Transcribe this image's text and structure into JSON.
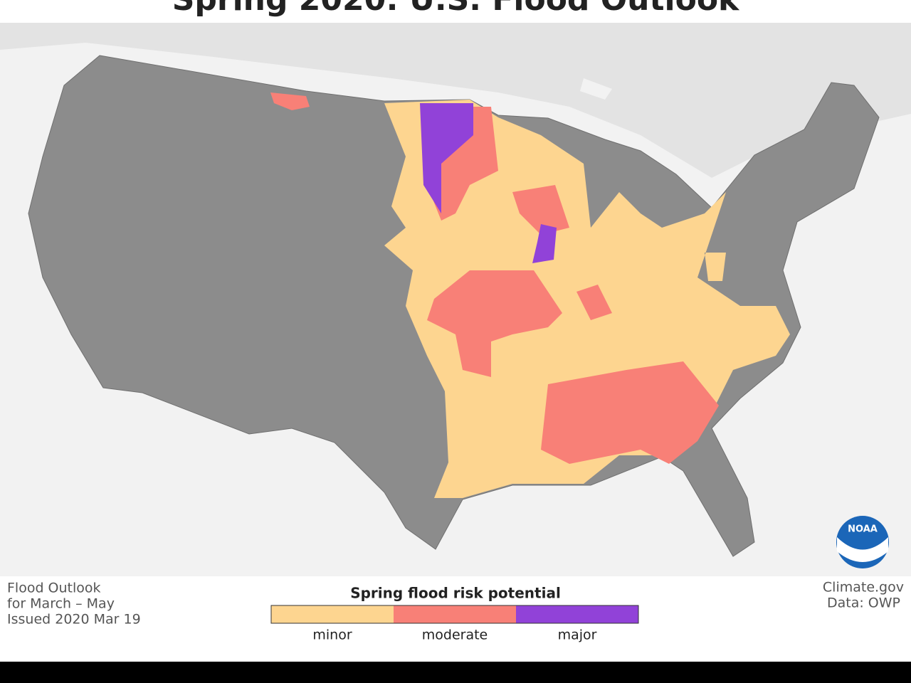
{
  "title": "Spring 2020: U.S. Flood Outlook",
  "info": [
    "Flood Outlook",
    "for March – May",
    "Issued 2020 Mar 19"
  ],
  "legend": {
    "title": "Spring flood risk potential",
    "items": [
      {
        "label": "minor",
        "color": "#fdd590"
      },
      {
        "label": "moderate",
        "color": "#f88077"
      },
      {
        "label": "major",
        "color": "#9142d8"
      }
    ]
  },
  "credits": [
    "Climate.gov",
    "Data: OWP"
  ],
  "logo": "NOAA"
}
